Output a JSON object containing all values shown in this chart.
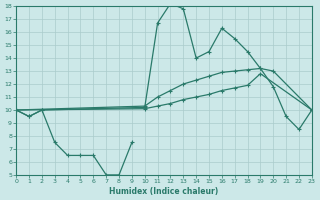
{
  "xlabel": "Humidex (Indice chaleur)",
  "bg_color": "#cce8e8",
  "grid_color": "#aacccc",
  "line_color": "#2a7a6a",
  "xlim": [
    0,
    23
  ],
  "ylim": [
    5,
    18
  ],
  "xticks": [
    0,
    1,
    2,
    3,
    4,
    5,
    6,
    7,
    8,
    9,
    10,
    11,
    12,
    13,
    14,
    15,
    16,
    17,
    18,
    19,
    20,
    21,
    22,
    23
  ],
  "yticks": [
    5,
    6,
    7,
    8,
    9,
    10,
    11,
    12,
    13,
    14,
    15,
    16,
    17,
    18
  ],
  "line1_x": [
    0,
    1,
    2,
    3,
    4,
    5,
    6,
    7,
    8,
    9
  ],
  "line1_y": [
    10,
    9.5,
    10,
    7.5,
    6.5,
    6.5,
    6.5,
    5,
    5,
    7.5
  ],
  "line2_x": [
    0,
    1,
    2,
    10,
    11,
    12,
    13,
    14,
    15,
    16,
    17,
    18,
    19,
    20,
    21,
    22,
    23
  ],
  "line2_y": [
    10,
    9.5,
    10,
    10.2,
    16.7,
    18.2,
    17.8,
    14.0,
    14.5,
    16.3,
    15.5,
    14.5,
    13.2,
    11.8,
    9.5,
    8.5,
    10
  ],
  "line3_x": [
    0,
    10,
    11,
    12,
    13,
    14,
    15,
    16,
    17,
    18,
    19,
    20,
    23
  ],
  "line3_y": [
    10,
    10.3,
    11.0,
    11.5,
    12.0,
    12.3,
    12.6,
    12.9,
    13.0,
    13.1,
    13.2,
    13.0,
    10
  ],
  "line4_x": [
    0,
    10,
    11,
    12,
    13,
    14,
    15,
    16,
    17,
    18,
    19,
    23
  ],
  "line4_y": [
    10,
    10.1,
    10.3,
    10.5,
    10.8,
    11.0,
    11.2,
    11.5,
    11.7,
    11.9,
    12.8,
    10
  ]
}
